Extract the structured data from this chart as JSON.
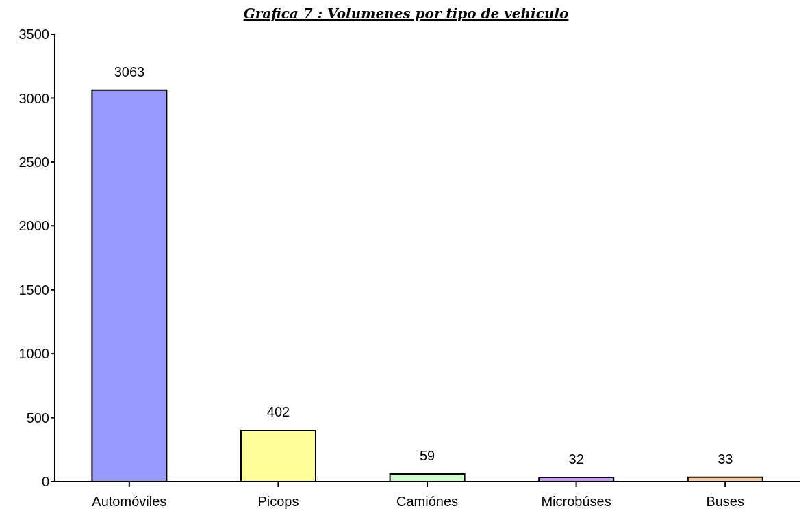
{
  "chart_data": {
    "type": "bar",
    "title": "Grafica 7 : Volumenes por tipo de vehiculo",
    "categories": [
      "Automóviles",
      "Picops",
      "Camiónes",
      "Microbúses",
      "Buses"
    ],
    "values": [
      3063,
      402,
      59,
      32,
      33
    ],
    "colors": [
      "#9999ff",
      "#ffff99",
      "#ccffcc",
      "#cc99ff",
      "#ffcc99"
    ],
    "ylim": [
      0,
      3500
    ],
    "yticks": [
      0,
      500,
      1000,
      1500,
      2000,
      2500,
      3000,
      3500
    ],
    "data_labels": true,
    "grid": false,
    "legend": false
  }
}
